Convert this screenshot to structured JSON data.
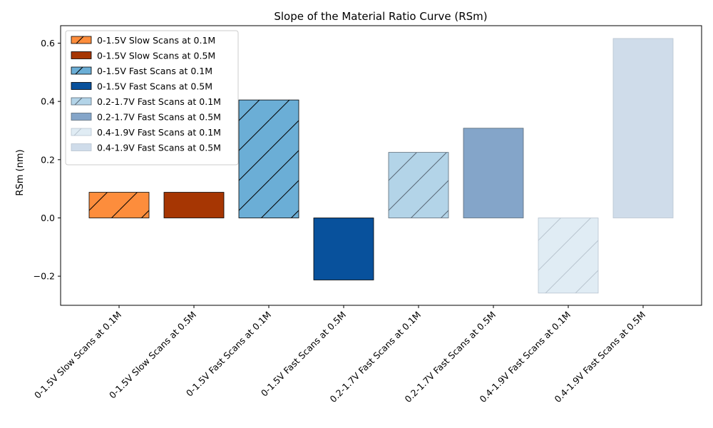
{
  "chart_data": {
    "type": "bar",
    "title": "Slope of the Material Ratio Curve (RSm)",
    "xlabel": "",
    "ylabel": "RSm (nm)",
    "ylim": [
      -0.3,
      0.66
    ],
    "yticks": [
      -0.2,
      0.0,
      0.2,
      0.4,
      0.6
    ],
    "ytick_labels": [
      "−0.2",
      "0.0",
      "0.2",
      "0.4",
      "0.6"
    ],
    "grid": false,
    "legend_position": "top-left",
    "categories": [
      "0-1.5V Slow Scans at 0.1M",
      "0-1.5V Slow Scans at 0.5M",
      "0-1.5V Fast Scans at 0.1M",
      "0-1.5V Fast Scans at 0.5M",
      "0.2-1.7V Fast Scans at 0.1M",
      "0.2-1.7V Fast Scans at 0.5M",
      "0.4-1.9V Fast Scans at 0.1M",
      "0.4-1.9V Fast Scans at 0.5M"
    ],
    "values": [
      0.088,
      0.088,
      0.405,
      -0.213,
      0.225,
      0.308,
      -0.258,
      0.616
    ],
    "colors": [
      "#fd8d3c",
      "#a63603",
      "#6baed6",
      "#08519c",
      "#b3d4e8",
      "#84a5c9",
      "#e0ecf4",
      "#cfdcea"
    ],
    "hatched": [
      true,
      false,
      true,
      false,
      true,
      false,
      true,
      false
    ],
    "edge_colors": [
      "#000000",
      "#000000",
      "#000000",
      "#000000",
      "#5a6a78",
      "#5a6a78",
      "#b8c4d0",
      "#b8c4d0"
    ]
  }
}
